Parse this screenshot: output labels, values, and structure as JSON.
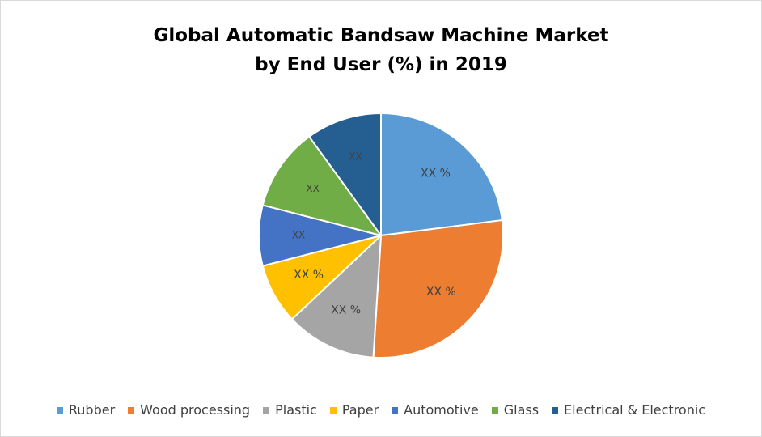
{
  "chart_data": {
    "type": "pie",
    "title_lines": [
      "Global Automatic Bandsaw Machine Market",
      "by End User (%) in 2019"
    ],
    "slices": [
      {
        "name": "Rubber",
        "value": 23,
        "label": "XX %",
        "color": "#5b9bd5"
      },
      {
        "name": "Wood processing",
        "value": 28,
        "label": "XX %",
        "color": "#ed7d31"
      },
      {
        "name": "Plastic",
        "value": 12,
        "label": "XX %",
        "color": "#a5a5a5"
      },
      {
        "name": "Paper",
        "value": 8,
        "label": "XX %",
        "color": "#ffc000"
      },
      {
        "name": "Automotive",
        "value": 8,
        "label": "XX",
        "color": "#4472c4"
      },
      {
        "name": "Glass",
        "value": 11,
        "label": "XX",
        "color": "#70ad47"
      },
      {
        "name": "Electrical & Electronic",
        "value": 10,
        "label": "XX",
        "color": "#255e91"
      }
    ],
    "legend_position": "bottom",
    "start_angle_deg": 0,
    "direction": "clockwise"
  }
}
